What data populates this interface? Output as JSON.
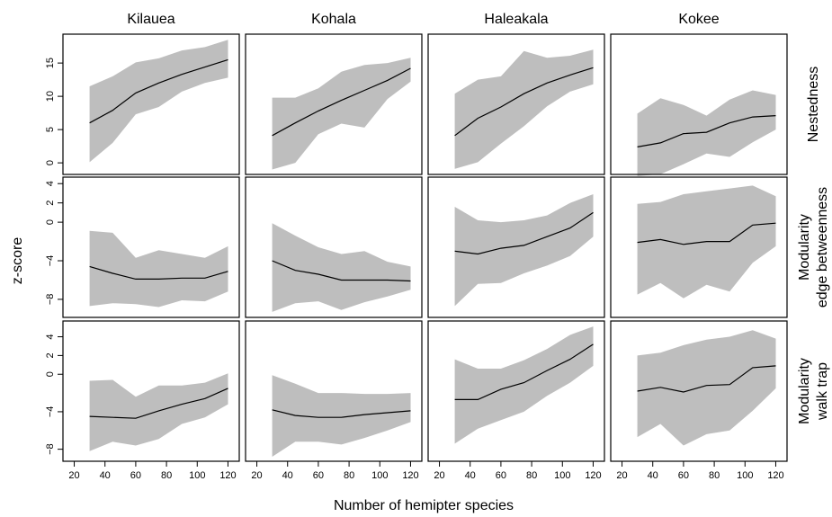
{
  "chart_data": {
    "type": "area",
    "xlabel": "Number of hemipter species",
    "ylabel": "z-score",
    "columns": [
      "Kilauea",
      "Kohala",
      "Haleakala",
      "Kokee"
    ],
    "rows": [
      {
        "label": [
          "Nestedness"
        ],
        "ylim": [
          -1.2,
          18.8
        ],
        "yticks": [
          0,
          5,
          10,
          15
        ]
      },
      {
        "label": [
          "Modularity",
          "edge betweenness"
        ],
        "ylim": [
          -9.5,
          4.3
        ],
        "yticks": [
          -8,
          -4,
          0,
          2,
          4
        ],
        "ytick_labels": [
          "−8",
          "−4",
          "0",
          "2",
          "4"
        ]
      },
      {
        "label": [
          "Modularity",
          "walk trap"
        ],
        "ylim": [
          -8.9,
          5.3
        ],
        "yticks": [
          -8,
          -4,
          0,
          2,
          4
        ],
        "ytick_labels": [
          "−8",
          "−4",
          "0",
          "2",
          "4"
        ]
      }
    ],
    "xlim": [
      15,
      125
    ],
    "xticks": [
      20,
      40,
      60,
      80,
      100,
      120
    ],
    "x": [
      30,
      45,
      60,
      75,
      90,
      105,
      120
    ],
    "panels": [
      [
        {
          "mean": [
            6.0,
            7.9,
            10.5,
            12.0,
            13.3,
            14.4,
            15.5
          ],
          "upper": [
            11.5,
            13.0,
            15.1,
            15.7,
            16.9,
            17.4,
            18.5
          ],
          "lower": [
            0.1,
            3.0,
            7.3,
            8.4,
            10.7,
            12.0,
            12.8
          ]
        },
        {
          "mean": [
            4.1,
            6.0,
            7.8,
            9.4,
            10.9,
            12.4,
            14.2
          ],
          "upper": [
            9.8,
            9.8,
            11.2,
            13.7,
            14.7,
            15.0,
            15.8
          ],
          "lower": [
            -1.0,
            0.0,
            4.3,
            5.9,
            5.3,
            9.6,
            12.2
          ]
        },
        {
          "mean": [
            4.1,
            6.7,
            8.4,
            10.4,
            12.0,
            13.2,
            14.3
          ],
          "upper": [
            10.4,
            12.5,
            13.0,
            16.8,
            15.8,
            16.1,
            17.0
          ],
          "lower": [
            -0.9,
            0.1,
            2.9,
            5.5,
            8.5,
            10.7,
            11.8
          ]
        },
        {
          "mean": [
            2.4,
            3.0,
            4.4,
            4.6,
            6.0,
            6.9,
            7.1
          ],
          "upper": [
            7.4,
            9.7,
            8.7,
            7.1,
            9.5,
            10.9,
            10.2
          ],
          "lower": [
            -2.0,
            -1.7,
            -0.2,
            1.4,
            0.9,
            3.1,
            5.0
          ]
        }
      ],
      [
        {
          "mean": [
            -4.6,
            -5.3,
            -5.9,
            -5.9,
            -5.8,
            -5.8,
            -5.1
          ],
          "upper": [
            -0.9,
            -1.1,
            -3.7,
            -2.9,
            -3.3,
            -3.7,
            -2.5
          ],
          "lower": [
            -8.7,
            -8.4,
            -8.5,
            -8.8,
            -8.1,
            -8.2,
            -7.2
          ]
        },
        {
          "mean": [
            -4.0,
            -5.0,
            -5.4,
            -6.0,
            -6.0,
            -6.0,
            -6.1
          ],
          "upper": [
            -0.1,
            -1.4,
            -2.6,
            -3.3,
            -3.0,
            -4.1,
            -4.6
          ],
          "lower": [
            -9.3,
            -8.4,
            -8.2,
            -9.1,
            -8.3,
            -7.7,
            -7.0
          ]
        },
        {
          "mean": [
            -3.0,
            -3.3,
            -2.7,
            -2.4,
            -1.5,
            -0.6,
            1.0
          ],
          "upper": [
            1.6,
            0.2,
            0.0,
            0.2,
            0.7,
            2.0,
            2.9
          ],
          "lower": [
            -8.7,
            -6.4,
            -6.3,
            -5.3,
            -4.5,
            -3.5,
            -1.5
          ]
        },
        {
          "mean": [
            -2.1,
            -1.8,
            -2.3,
            -2.0,
            -2.0,
            -0.3,
            -0.1
          ],
          "upper": [
            1.9,
            2.1,
            2.9,
            3.2,
            3.5,
            3.8,
            2.7
          ],
          "lower": [
            -7.5,
            -6.3,
            -7.9,
            -6.5,
            -7.2,
            -4.2,
            -2.5
          ]
        }
      ],
      [
        {
          "mean": [
            -4.5,
            -4.6,
            -4.7,
            -3.9,
            -3.2,
            -2.6,
            -1.5
          ],
          "upper": [
            -0.7,
            -0.6,
            -2.4,
            -1.2,
            -1.2,
            -0.9,
            0.1
          ],
          "lower": [
            -8.2,
            -7.2,
            -7.6,
            -6.9,
            -5.3,
            -4.6,
            -3.2
          ]
        },
        {
          "mean": [
            -3.8,
            -4.4,
            -4.6,
            -4.6,
            -4.3,
            -4.1,
            -3.9
          ],
          "upper": [
            -0.1,
            -1.0,
            -2.0,
            -2.0,
            -2.1,
            -2.1,
            -2.0
          ],
          "lower": [
            -8.8,
            -7.2,
            -7.2,
            -7.5,
            -6.8,
            -6.0,
            -5.1
          ]
        },
        {
          "mean": [
            -2.7,
            -2.7,
            -1.6,
            -0.9,
            0.4,
            1.6,
            3.2
          ],
          "upper": [
            1.6,
            0.6,
            0.6,
            1.5,
            2.7,
            4.2,
            5.1
          ],
          "lower": [
            -7.4,
            -5.8,
            -4.9,
            -4.0,
            -2.3,
            -0.9,
            0.9
          ]
        },
        {
          "mean": [
            -1.8,
            -1.4,
            -1.9,
            -1.2,
            -1.1,
            0.7,
            0.9
          ],
          "upper": [
            2.0,
            2.3,
            3.1,
            3.7,
            4.0,
            4.7,
            3.8
          ],
          "lower": [
            -6.7,
            -5.3,
            -7.6,
            -6.4,
            -6.0,
            -3.9,
            -1.5
          ]
        }
      ]
    ]
  }
}
